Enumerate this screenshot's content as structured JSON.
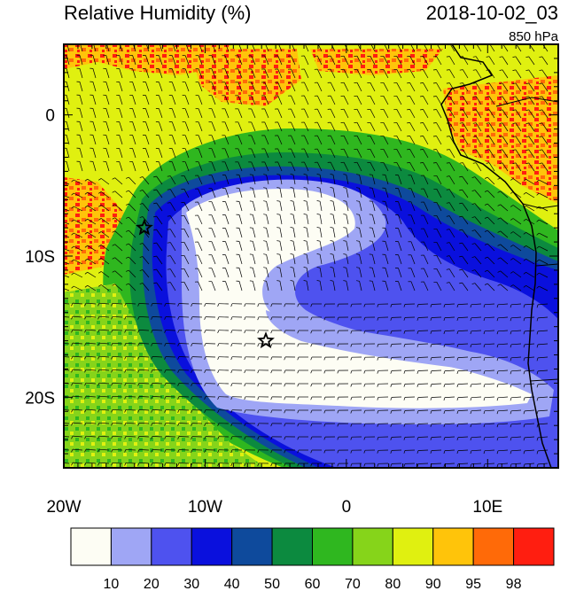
{
  "header": {
    "title": "Relative Humidity (%)",
    "datetime": "2018-10-02_03",
    "level": "850 hPa"
  },
  "map": {
    "lon_range": [
      -20,
      15
    ],
    "lat_range": [
      -25,
      5
    ],
    "x_ticks": [
      {
        "value": -20,
        "label": "20W"
      },
      {
        "value": -10,
        "label": "10W"
      },
      {
        "value": 0,
        "label": "0"
      },
      {
        "value": 10,
        "label": "10E"
      }
    ],
    "y_ticks": [
      {
        "value": 0,
        "label": "0"
      },
      {
        "value": -10,
        "label": "10S"
      },
      {
        "value": -20,
        "label": "20S"
      }
    ],
    "markers": [
      {
        "name": "star-marker-north",
        "lon": -14.3,
        "lat": -8.0
      },
      {
        "name": "star-marker-south",
        "lon": -5.7,
        "lat": -16.0
      }
    ]
  },
  "colorbar": {
    "colors": [
      "#fdfdf4",
      "#9fa6f5",
      "#4e52ef",
      "#0a10dd",
      "#0e4a9c",
      "#0c8a3f",
      "#2fb71f",
      "#86d41a",
      "#e0f010",
      "#ffc40a",
      "#ff6a08",
      "#ff1e10"
    ],
    "labels": [
      "10",
      "20",
      "30",
      "40",
      "50",
      "60",
      "70",
      "80",
      "90",
      "95",
      "98"
    ]
  }
}
